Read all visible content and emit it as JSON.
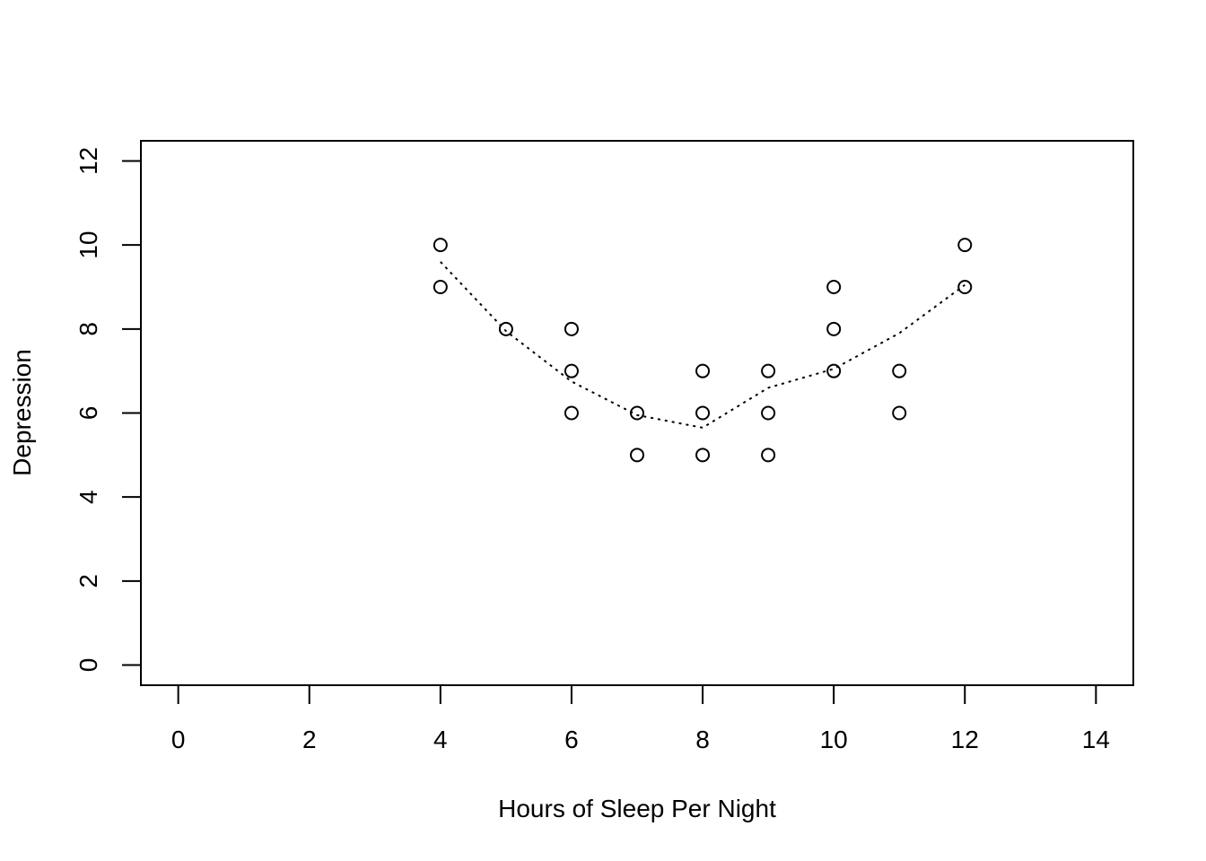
{
  "chart_data": {
    "type": "scatter",
    "title": "",
    "xlabel": "Hours of Sleep Per Night",
    "ylabel": "Depression",
    "xlim": [
      -0.57,
      14.57
    ],
    "ylim": [
      -0.48,
      12.48
    ],
    "xticks": [
      0,
      2,
      4,
      6,
      8,
      10,
      12,
      14
    ],
    "yticks": [
      0,
      2,
      4,
      6,
      8,
      10,
      12
    ],
    "grid": false,
    "legend": "none",
    "series": [
      {
        "marker": "open-circle",
        "color": "#000000",
        "points": [
          [
            4,
            10
          ],
          [
            4,
            9
          ],
          [
            5,
            8
          ],
          [
            6,
            8
          ],
          [
            6,
            7
          ],
          [
            6,
            6
          ],
          [
            7,
            6
          ],
          [
            7,
            5
          ],
          [
            8,
            7
          ],
          [
            8,
            6
          ],
          [
            8,
            5
          ],
          [
            9,
            7
          ],
          [
            9,
            6
          ],
          [
            9,
            5
          ],
          [
            10,
            9
          ],
          [
            10,
            8
          ],
          [
            10,
            7
          ],
          [
            11,
            7
          ],
          [
            11,
            6
          ],
          [
            12,
            10
          ],
          [
            12,
            9
          ]
        ]
      }
    ],
    "smooth_line": {
      "style": "dotted",
      "color": "#000000",
      "points": [
        [
          4,
          9.6
        ],
        [
          5,
          7.95
        ],
        [
          6,
          6.75
        ],
        [
          7,
          5.95
        ],
        [
          8,
          5.65
        ],
        [
          9,
          6.6
        ],
        [
          10,
          7.05
        ],
        [
          11,
          7.9
        ],
        [
          12,
          9.05
        ]
      ]
    }
  }
}
